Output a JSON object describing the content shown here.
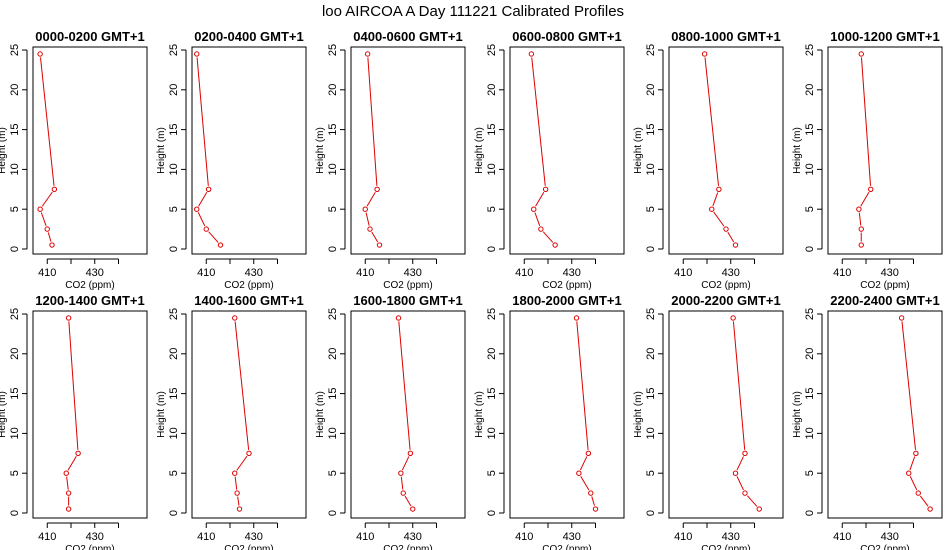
{
  "title": "loo AIRCOA A  Day 111221  Calibrated Profiles",
  "colors": {
    "series": "#dd0000",
    "axes": "#000000",
    "background": "#ffffff"
  },
  "chart_data": {
    "type": "line",
    "layout": "2 rows x 6 columns of small-multiple profile plots",
    "xlabel": "CO2 (ppm)",
    "ylabel": "Height (m)",
    "xlim": [
      404,
      452
    ],
    "ylim": [
      0,
      25
    ],
    "xticks": [
      410,
      430
    ],
    "yticks": [
      0,
      5,
      10,
      15,
      20,
      25
    ],
    "grid": false,
    "heights": [
      0.5,
      2.5,
      5,
      7.5,
      24.5
    ],
    "panels": [
      {
        "title": "0000-0200 GMT+1",
        "co2": [
          412,
          410,
          407,
          413,
          407
        ]
      },
      {
        "title": "0200-0400 GMT+1",
        "co2": [
          416,
          410,
          406,
          411,
          406
        ]
      },
      {
        "title": "0400-0600 GMT+1",
        "co2": [
          416,
          412,
          410,
          415,
          411
        ]
      },
      {
        "title": "0600-0800 GMT+1",
        "co2": [
          423,
          417,
          414,
          419,
          413
        ]
      },
      {
        "title": "0800-1000 GMT+1",
        "co2": [
          432,
          428,
          422,
          425,
          419
        ]
      },
      {
        "title": "1000-1200 GMT+1",
        "co2": [
          418,
          418,
          417,
          422,
          418
        ]
      },
      {
        "title": "1200-1400 GMT+1",
        "co2": [
          419,
          419,
          418,
          423,
          419
        ]
      },
      {
        "title": "1400-1600 GMT+1",
        "co2": [
          424,
          423,
          422,
          428,
          422
        ]
      },
      {
        "title": "1600-1800 GMT+1",
        "co2": [
          430,
          426,
          425,
          429,
          424
        ]
      },
      {
        "title": "1800-2000 GMT+1",
        "co2": [
          440,
          438,
          433,
          437,
          432
        ]
      },
      {
        "title": "2000-2200 GMT+1",
        "co2": [
          442,
          436,
          432,
          436,
          431
        ]
      },
      {
        "title": "2200-2400 GMT+1",
        "co2": [
          447,
          442,
          438,
          441,
          435
        ]
      }
    ]
  }
}
